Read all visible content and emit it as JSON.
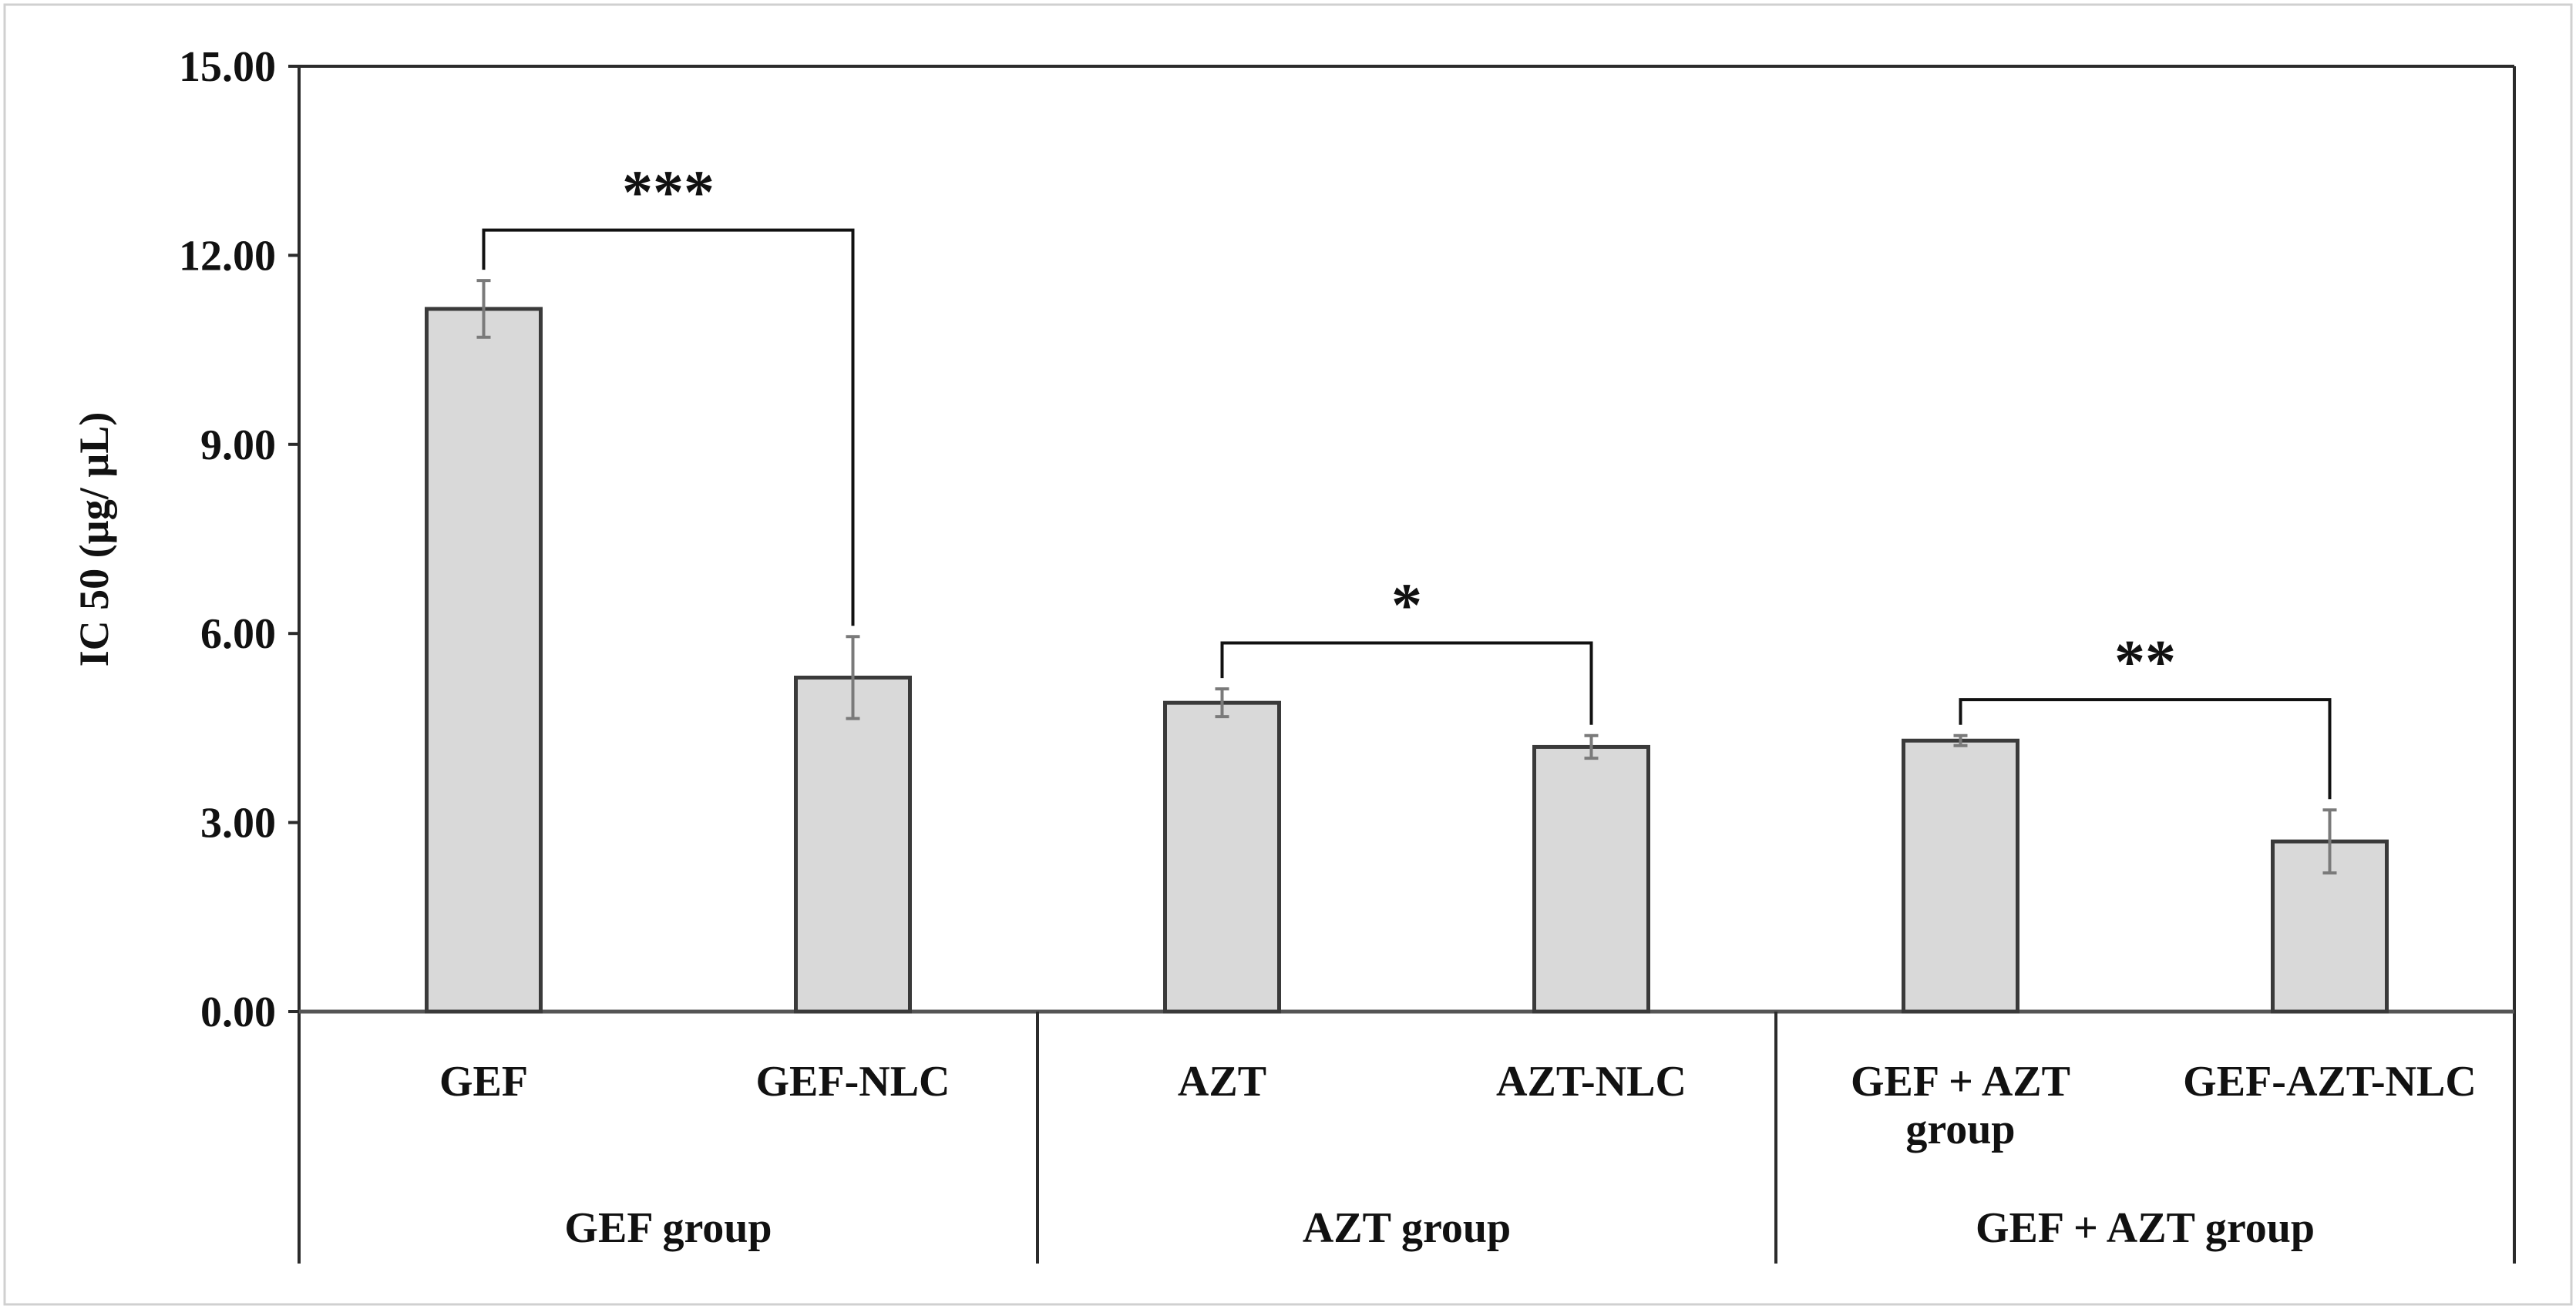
{
  "chart_data": {
    "type": "bar",
    "title": "",
    "xlabel": "",
    "ylabel": "IC 50 (µg/ µL)",
    "ylim": [
      0,
      15
    ],
    "yticks": [
      "0.00",
      "3.00",
      "6.00",
      "9.00",
      "12.00",
      "15.00"
    ],
    "ytick_values": [
      0,
      3,
      6,
      9,
      12,
      15
    ],
    "categories": [
      "GEF",
      "GEF-NLC",
      "AZT",
      "AZT-NLC",
      "GEF + AZT group",
      "GEF-AZT-NLC"
    ],
    "category_lines": [
      [
        "GEF"
      ],
      [
        "GEF-NLC"
      ],
      [
        "AZT"
      ],
      [
        "AZT-NLC"
      ],
      [
        "GEF + AZT",
        "group"
      ],
      [
        "GEF-AZT-NLC"
      ]
    ],
    "values": [
      11.15,
      5.3,
      4.9,
      4.2,
      4.3,
      2.7
    ],
    "errors": [
      0.45,
      0.65,
      0.22,
      0.18,
      0.08,
      0.5
    ],
    "groups": [
      {
        "name": "GEF group",
        "members": [
          0,
          1
        ]
      },
      {
        "name": "AZT group",
        "members": [
          2,
          3
        ]
      },
      {
        "name": "GEF + AZT group",
        "members": [
          4,
          5
        ]
      }
    ],
    "significance": [
      {
        "from": 0,
        "to": 1,
        "label": "***",
        "y": 12.4
      },
      {
        "from": 2,
        "to": 3,
        "label": "*",
        "y": 5.85
      },
      {
        "from": 4,
        "to": 5,
        "label": "**",
        "y": 4.95
      }
    ],
    "grid": false,
    "legend": "none",
    "colors": {
      "bar_fill": "#d9d9d9",
      "bar_stroke": "#3a3a3a",
      "error_bar": "#7a7a7a"
    }
  }
}
